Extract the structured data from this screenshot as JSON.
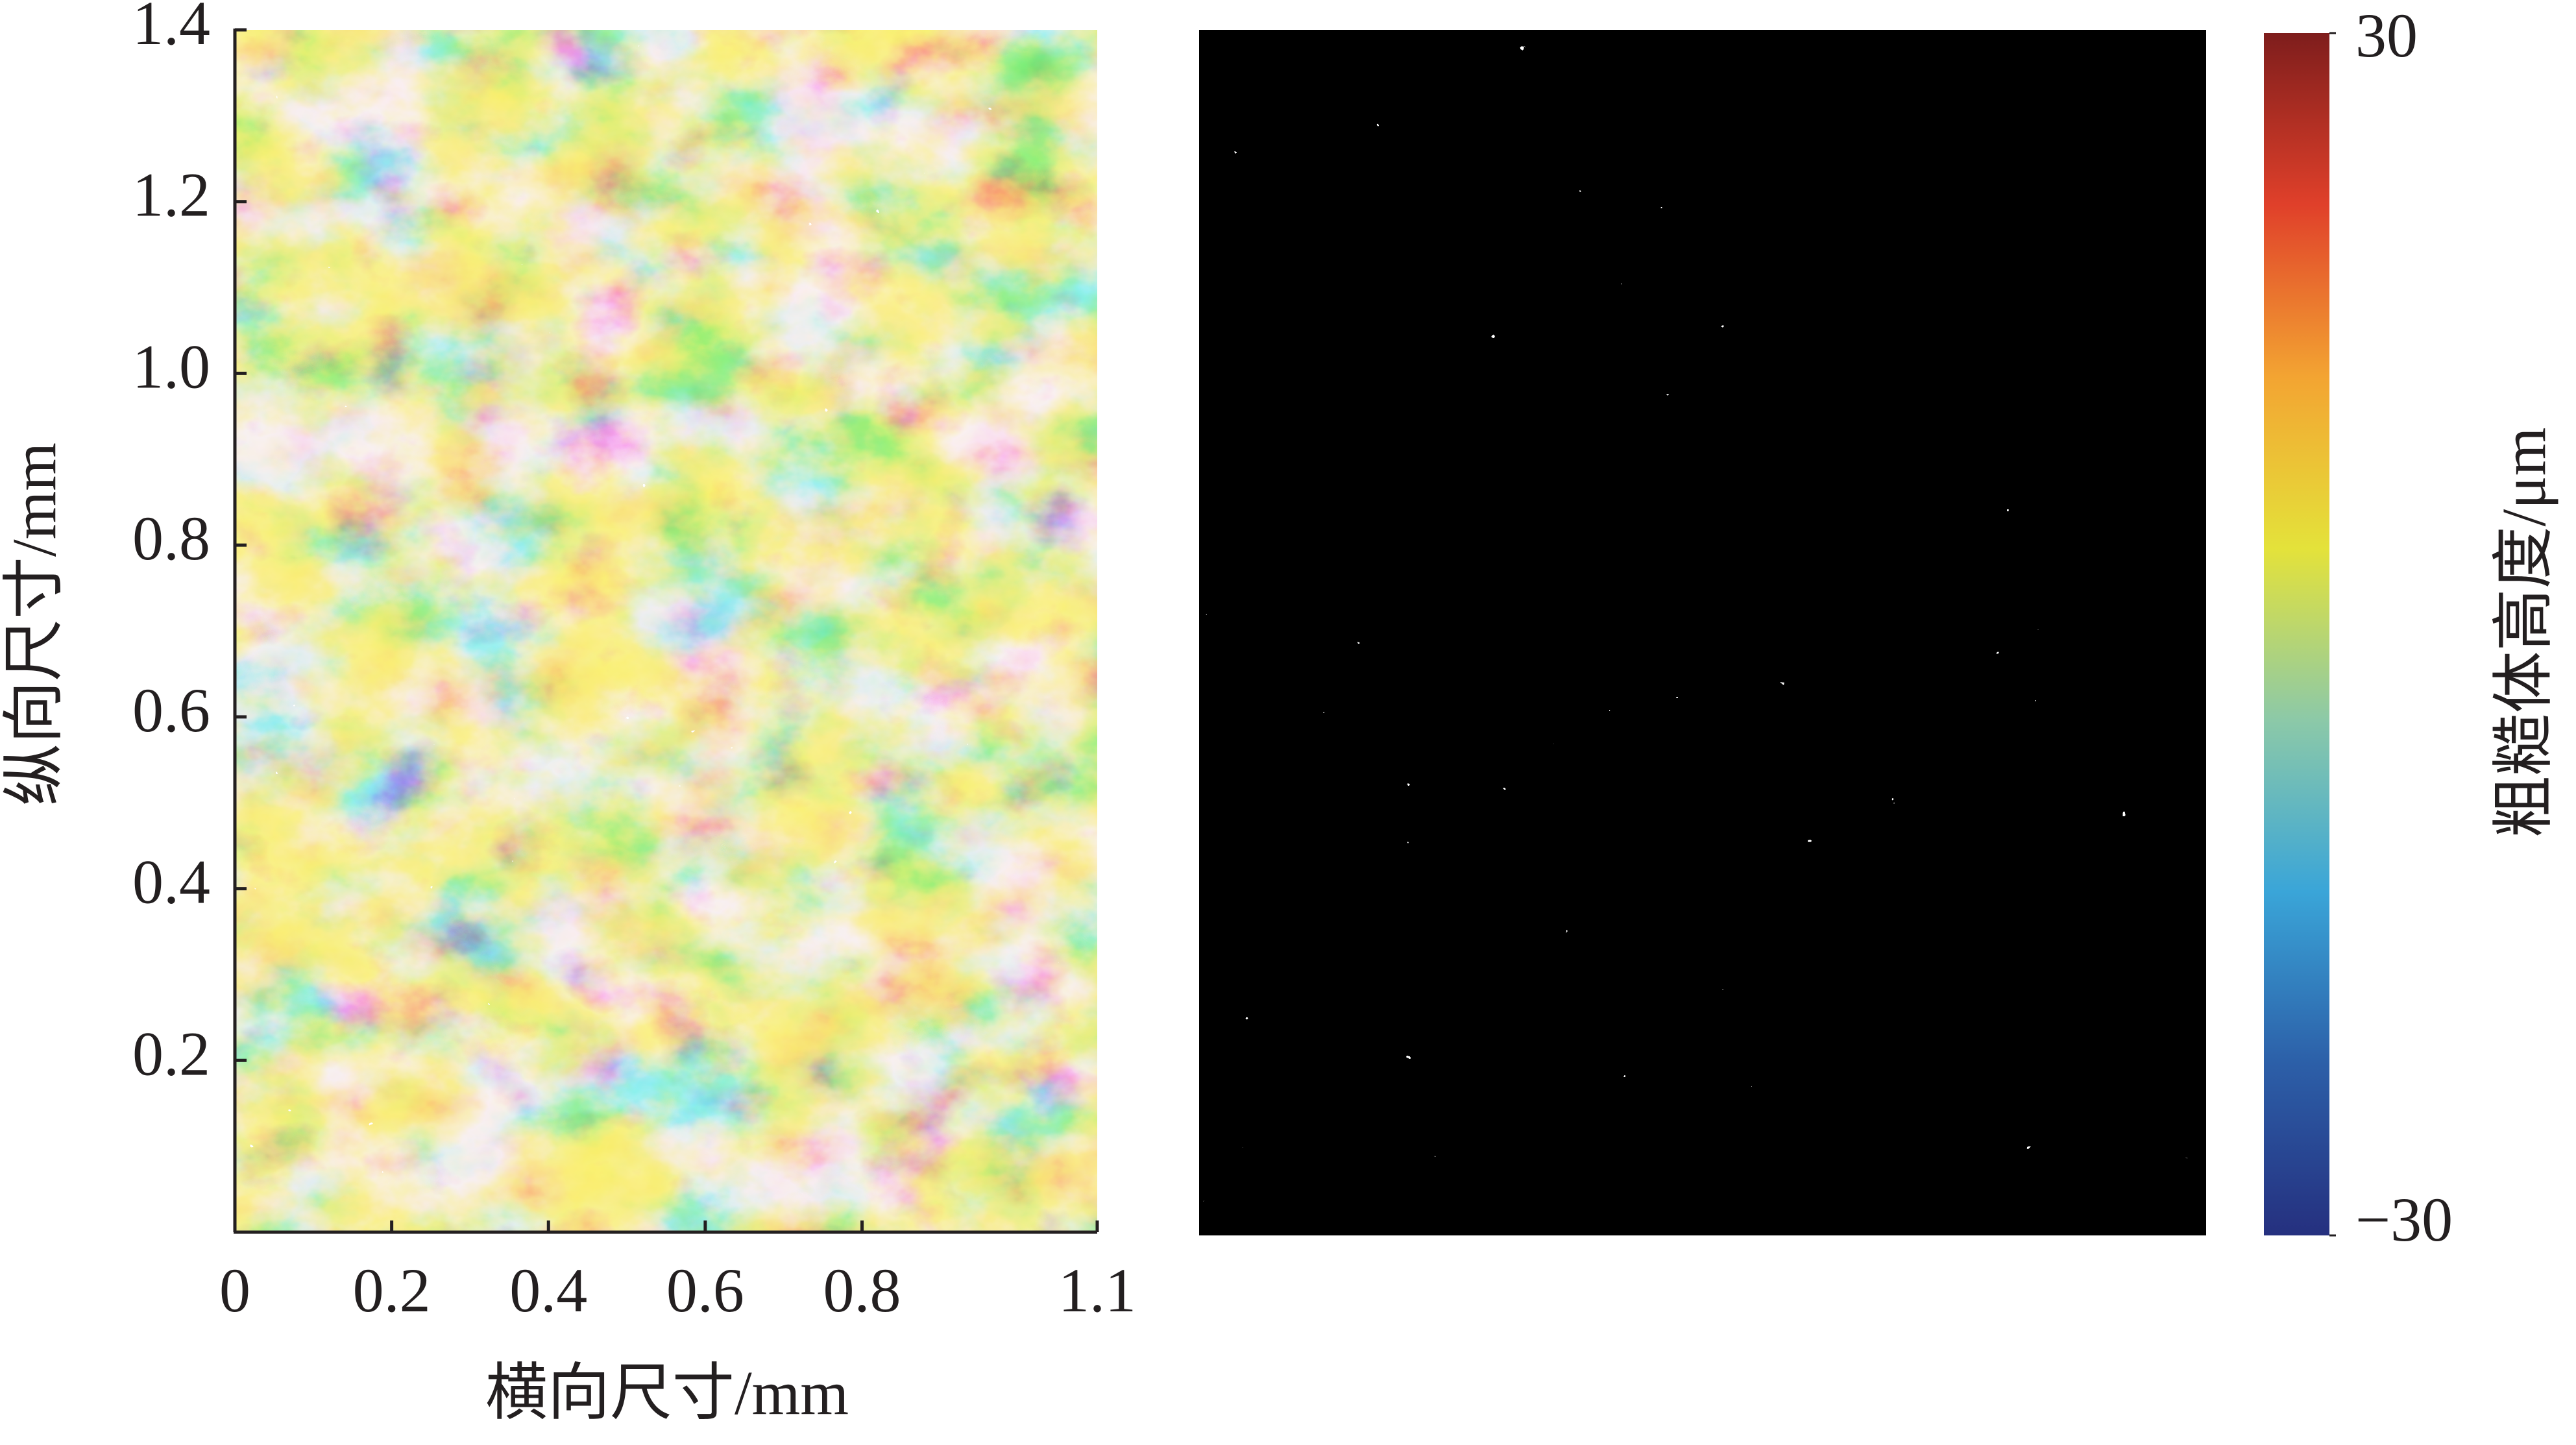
{
  "chart_data": {
    "type": "heatmap",
    "xlabel": "横向尺寸/mm",
    "ylabel": "纵向尺寸/mm",
    "xlim": [
      0,
      1.1
    ],
    "ylim": [
      0,
      1.4
    ],
    "xticks": [
      0,
      0.2,
      0.4,
      0.6,
      0.8,
      1.1
    ],
    "yticks": [
      0.2,
      0.4,
      0.6,
      0.8,
      {
        "value": 1,
        "label": "1.0"
      },
      1.2,
      1.4
    ],
    "colorbar": {
      "label": "粗糙体高度/μm",
      "clim": [
        -30,
        30
      ],
      "ticks": [
        30,
        {
          "value": -30,
          "label": "−30"
        }
      ],
      "colormap": [
        "#25307f",
        "#2c5fa8",
        "#3aa5d8",
        "#8cc9a8",
        "#e4e23a",
        "#f3a432",
        "#e0402a",
        "#7e1d1c"
      ]
    }
  }
}
